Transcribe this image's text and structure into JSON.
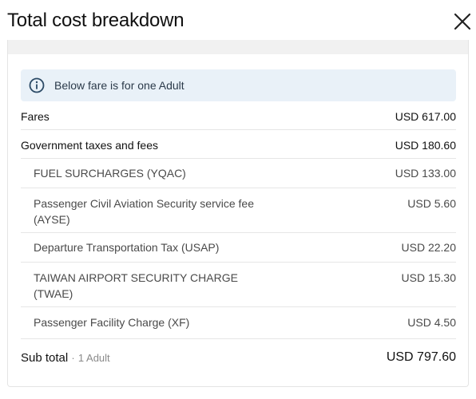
{
  "header": {
    "title": "Total cost breakdown"
  },
  "info": {
    "text": "Below fare is for one Adult"
  },
  "rows": [
    {
      "label": "Fares",
      "amount": "USD 617.00"
    },
    {
      "label": "Government taxes and fees",
      "amount": "USD 180.60"
    },
    {
      "label": "FUEL SURCHARGES (YQAC)",
      "amount": "USD 133.00"
    },
    {
      "label": "Passenger Civil Aviation Security service fee (AYSE)",
      "amount": "USD 5.60"
    },
    {
      "label": "Departure Transportation Tax (USAP)",
      "amount": "USD 22.20"
    },
    {
      "label": "TAIWAN AIRPORT SECURITY CHARGE (TWAE)",
      "amount": "USD 15.30"
    },
    {
      "label": "Passenger Facility Charge (XF)",
      "amount": "USD 4.50"
    }
  ],
  "subtotal": {
    "label": "Sub total",
    "separator": "·",
    "passengers": "1 Adult",
    "amount": "USD 797.60"
  },
  "icons": {
    "close": "close-icon",
    "info": "info-icon"
  },
  "colors": {
    "info_bg": "#e9f1f8",
    "info_icon": "#2b4a66"
  }
}
